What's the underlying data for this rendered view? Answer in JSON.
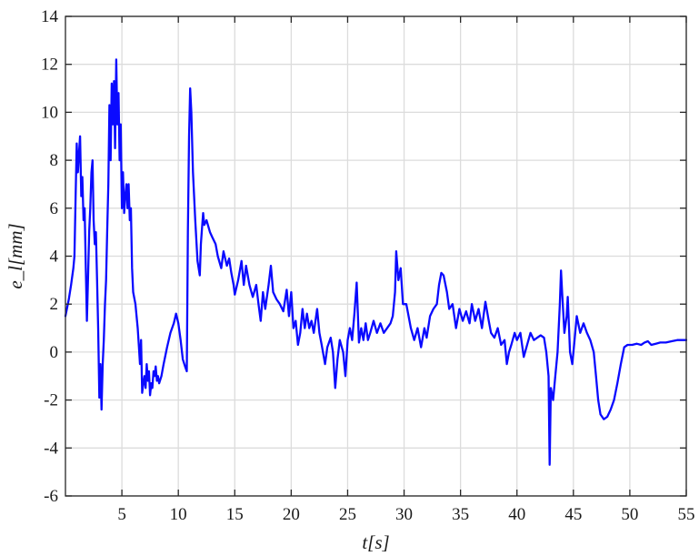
{
  "chart_data": {
    "type": "line",
    "title": "",
    "xlabel": "t[s]",
    "ylabel": "e_l[mm]",
    "xlim": [
      0,
      55
    ],
    "ylim": [
      -6,
      14
    ],
    "xticks": [
      5,
      10,
      15,
      20,
      25,
      30,
      35,
      40,
      45,
      50,
      55
    ],
    "yticks": [
      -6,
      -4,
      -2,
      0,
      2,
      4,
      6,
      8,
      10,
      12,
      14
    ],
    "grid": true,
    "series": [
      {
        "color": "#0a0aff",
        "points": [
          [
            0.0,
            1.5
          ],
          [
            0.3,
            2.2
          ],
          [
            0.5,
            2.8
          ],
          [
            0.7,
            3.5
          ],
          [
            0.8,
            4.0
          ],
          [
            0.9,
            6.5
          ],
          [
            1.0,
            8.7
          ],
          [
            1.1,
            7.5
          ],
          [
            1.2,
            8.3
          ],
          [
            1.3,
            9.0
          ],
          [
            1.4,
            6.5
          ],
          [
            1.5,
            7.3
          ],
          [
            1.6,
            5.5
          ],
          [
            1.7,
            6.0
          ],
          [
            1.8,
            3.5
          ],
          [
            1.9,
            1.3
          ],
          [
            2.0,
            3.0
          ],
          [
            2.1,
            5.0
          ],
          [
            2.2,
            6.0
          ],
          [
            2.3,
            7.5
          ],
          [
            2.4,
            8.0
          ],
          [
            2.5,
            5.5
          ],
          [
            2.6,
            4.5
          ],
          [
            2.7,
            5.0
          ],
          [
            2.8,
            3.0
          ],
          [
            2.9,
            1.0
          ],
          [
            3.0,
            -1.9
          ],
          [
            3.1,
            -0.5
          ],
          [
            3.2,
            -2.4
          ],
          [
            3.3,
            -0.5
          ],
          [
            3.4,
            0.5
          ],
          [
            3.5,
            2.0
          ],
          [
            3.6,
            3.0
          ],
          [
            3.7,
            5.0
          ],
          [
            3.8,
            7.0
          ],
          [
            3.9,
            10.3
          ],
          [
            4.0,
            8.0
          ],
          [
            4.1,
            11.2
          ],
          [
            4.2,
            9.5
          ],
          [
            4.3,
            11.3
          ],
          [
            4.4,
            8.5
          ],
          [
            4.5,
            12.2
          ],
          [
            4.6,
            9.5
          ],
          [
            4.7,
            10.8
          ],
          [
            4.8,
            8.0
          ],
          [
            4.9,
            9.5
          ],
          [
            5.0,
            6.0
          ],
          [
            5.1,
            7.5
          ],
          [
            5.2,
            5.8
          ],
          [
            5.3,
            6.5
          ],
          [
            5.4,
            7.0
          ],
          [
            5.5,
            6.0
          ],
          [
            5.6,
            7.0
          ],
          [
            5.7,
            5.5
          ],
          [
            5.8,
            6.0
          ],
          [
            5.9,
            3.5
          ],
          [
            6.0,
            2.5
          ],
          [
            6.2,
            2.0
          ],
          [
            6.4,
            1.0
          ],
          [
            6.5,
            0.3
          ],
          [
            6.6,
            -0.5
          ],
          [
            6.7,
            0.5
          ],
          [
            6.8,
            -1.7
          ],
          [
            6.9,
            -1.3
          ],
          [
            7.0,
            -1.0
          ],
          [
            7.1,
            -1.5
          ],
          [
            7.2,
            -0.5
          ],
          [
            7.3,
            -1.2
          ],
          [
            7.4,
            -0.8
          ],
          [
            7.5,
            -1.8
          ],
          [
            7.6,
            -1.3
          ],
          [
            7.7,
            -1.5
          ],
          [
            7.8,
            -0.8
          ],
          [
            7.9,
            -1.0
          ],
          [
            8.0,
            -0.6
          ],
          [
            8.1,
            -1.2
          ],
          [
            8.2,
            -1.0
          ],
          [
            8.3,
            -1.3
          ],
          [
            8.5,
            -1.0
          ],
          [
            8.7,
            -0.5
          ],
          [
            9.0,
            0.2
          ],
          [
            9.3,
            0.8
          ],
          [
            9.6,
            1.2
          ],
          [
            9.8,
            1.6
          ],
          [
            10.0,
            1.2
          ],
          [
            10.2,
            0.5
          ],
          [
            10.4,
            -0.3
          ],
          [
            10.6,
            -0.6
          ],
          [
            10.75,
            -0.8
          ],
          [
            10.85,
            5.0
          ],
          [
            10.95,
            9.0
          ],
          [
            11.05,
            11.0
          ],
          [
            11.15,
            10.0
          ],
          [
            11.3,
            7.5
          ],
          [
            11.5,
            5.5
          ],
          [
            11.7,
            3.8
          ],
          [
            11.9,
            3.2
          ],
          [
            12.0,
            4.5
          ],
          [
            12.1,
            5.2
          ],
          [
            12.2,
            5.8
          ],
          [
            12.3,
            5.3
          ],
          [
            12.5,
            5.5
          ],
          [
            12.8,
            5.0
          ],
          [
            13.0,
            4.8
          ],
          [
            13.3,
            4.5
          ],
          [
            13.5,
            4.0
          ],
          [
            13.8,
            3.5
          ],
          [
            14.0,
            4.2
          ],
          [
            14.3,
            3.6
          ],
          [
            14.5,
            3.9
          ],
          [
            14.7,
            3.3
          ],
          [
            14.9,
            2.8
          ],
          [
            15.0,
            2.4
          ],
          [
            15.3,
            3.0
          ],
          [
            15.6,
            3.8
          ],
          [
            15.8,
            2.8
          ],
          [
            16.0,
            3.6
          ],
          [
            16.3,
            2.8
          ],
          [
            16.6,
            2.3
          ],
          [
            16.9,
            2.8
          ],
          [
            17.1,
            2.0
          ],
          [
            17.3,
            1.3
          ],
          [
            17.5,
            2.5
          ],
          [
            17.7,
            1.8
          ],
          [
            18.0,
            2.8
          ],
          [
            18.2,
            3.6
          ],
          [
            18.4,
            2.5
          ],
          [
            18.7,
            2.2
          ],
          [
            19.0,
            2.0
          ],
          [
            19.3,
            1.7
          ],
          [
            19.6,
            2.6
          ],
          [
            19.8,
            1.5
          ],
          [
            20.0,
            2.5
          ],
          [
            20.2,
            1.0
          ],
          [
            20.4,
            1.3
          ],
          [
            20.6,
            0.3
          ],
          [
            20.8,
            0.8
          ],
          [
            21.0,
            1.8
          ],
          [
            21.2,
            1.0
          ],
          [
            21.4,
            1.6
          ],
          [
            21.6,
            1.0
          ],
          [
            21.8,
            1.3
          ],
          [
            22.0,
            0.8
          ],
          [
            22.3,
            1.8
          ],
          [
            22.5,
            0.8
          ],
          [
            22.7,
            0.3
          ],
          [
            23.0,
            -0.5
          ],
          [
            23.2,
            0.2
          ],
          [
            23.5,
            0.6
          ],
          [
            23.7,
            0.0
          ],
          [
            23.9,
            -1.5
          ],
          [
            24.1,
            -0.3
          ],
          [
            24.3,
            0.5
          ],
          [
            24.6,
            0.0
          ],
          [
            24.8,
            -1.0
          ],
          [
            25.0,
            0.5
          ],
          [
            25.2,
            1.0
          ],
          [
            25.4,
            0.5
          ],
          [
            25.6,
            1.6
          ],
          [
            25.8,
            2.9
          ],
          [
            26.0,
            0.4
          ],
          [
            26.2,
            1.0
          ],
          [
            26.4,
            0.5
          ],
          [
            26.6,
            1.2
          ],
          [
            26.8,
            0.5
          ],
          [
            27.0,
            0.8
          ],
          [
            27.3,
            1.3
          ],
          [
            27.6,
            0.8
          ],
          [
            27.9,
            1.2
          ],
          [
            28.2,
            0.8
          ],
          [
            28.5,
            1.0
          ],
          [
            28.8,
            1.2
          ],
          [
            29.0,
            1.5
          ],
          [
            29.2,
            2.5
          ],
          [
            29.3,
            4.2
          ],
          [
            29.5,
            3.0
          ],
          [
            29.7,
            3.5
          ],
          [
            29.9,
            2.0
          ],
          [
            30.2,
            2.0
          ],
          [
            30.4,
            1.5
          ],
          [
            30.6,
            1.0
          ],
          [
            30.9,
            0.5
          ],
          [
            31.2,
            1.0
          ],
          [
            31.5,
            0.2
          ],
          [
            31.8,
            1.0
          ],
          [
            32.0,
            0.6
          ],
          [
            32.3,
            1.5
          ],
          [
            32.6,
            1.8
          ],
          [
            32.9,
            2.0
          ],
          [
            33.1,
            2.8
          ],
          [
            33.3,
            3.3
          ],
          [
            33.5,
            3.2
          ],
          [
            33.8,
            2.5
          ],
          [
            34.0,
            1.8
          ],
          [
            34.3,
            2.0
          ],
          [
            34.6,
            1.0
          ],
          [
            34.9,
            1.8
          ],
          [
            35.2,
            1.3
          ],
          [
            35.5,
            1.7
          ],
          [
            35.8,
            1.2
          ],
          [
            36.0,
            2.0
          ],
          [
            36.3,
            1.3
          ],
          [
            36.6,
            1.8
          ],
          [
            36.9,
            1.0
          ],
          [
            37.2,
            2.1
          ],
          [
            37.5,
            1.3
          ],
          [
            37.7,
            0.8
          ],
          [
            38.0,
            0.6
          ],
          [
            38.3,
            1.0
          ],
          [
            38.6,
            0.3
          ],
          [
            38.9,
            0.5
          ],
          [
            39.1,
            -0.5
          ],
          [
            39.3,
            0.0
          ],
          [
            39.5,
            0.3
          ],
          [
            39.8,
            0.8
          ],
          [
            40.0,
            0.5
          ],
          [
            40.3,
            0.8
          ],
          [
            40.6,
            -0.2
          ],
          [
            40.9,
            0.3
          ],
          [
            41.2,
            0.8
          ],
          [
            41.5,
            0.5
          ],
          [
            41.8,
            0.6
          ],
          [
            42.1,
            0.7
          ],
          [
            42.4,
            0.6
          ],
          [
            42.6,
            0.0
          ],
          [
            42.8,
            -1.0
          ],
          [
            42.9,
            -4.7
          ],
          [
            43.0,
            -1.5
          ],
          [
            43.2,
            -2.0
          ],
          [
            43.4,
            -1.0
          ],
          [
            43.6,
            0.0
          ],
          [
            43.8,
            2.0
          ],
          [
            43.9,
            3.4
          ],
          [
            44.0,
            2.5
          ],
          [
            44.2,
            0.8
          ],
          [
            44.4,
            1.5
          ],
          [
            44.5,
            2.3
          ],
          [
            44.7,
            0.0
          ],
          [
            44.9,
            -0.5
          ],
          [
            45.1,
            0.5
          ],
          [
            45.3,
            1.5
          ],
          [
            45.6,
            0.8
          ],
          [
            45.9,
            1.2
          ],
          [
            46.2,
            0.8
          ],
          [
            46.5,
            0.5
          ],
          [
            46.8,
            0.0
          ],
          [
            47.0,
            -1.0
          ],
          [
            47.2,
            -2.0
          ],
          [
            47.4,
            -2.6
          ],
          [
            47.7,
            -2.8
          ],
          [
            48.0,
            -2.7
          ],
          [
            48.3,
            -2.4
          ],
          [
            48.6,
            -2.0
          ],
          [
            48.9,
            -1.3
          ],
          [
            49.2,
            -0.5
          ],
          [
            49.5,
            0.2
          ],
          [
            49.8,
            0.3
          ],
          [
            50.2,
            0.3
          ],
          [
            50.6,
            0.35
          ],
          [
            51.0,
            0.3
          ],
          [
            51.3,
            0.4
          ],
          [
            51.6,
            0.45
          ],
          [
            51.9,
            0.3
          ],
          [
            52.3,
            0.35
          ],
          [
            52.7,
            0.4
          ],
          [
            53.2,
            0.4
          ],
          [
            53.7,
            0.45
          ],
          [
            54.2,
            0.5
          ],
          [
            54.7,
            0.5
          ],
          [
            55.0,
            0.5
          ]
        ]
      }
    ]
  }
}
